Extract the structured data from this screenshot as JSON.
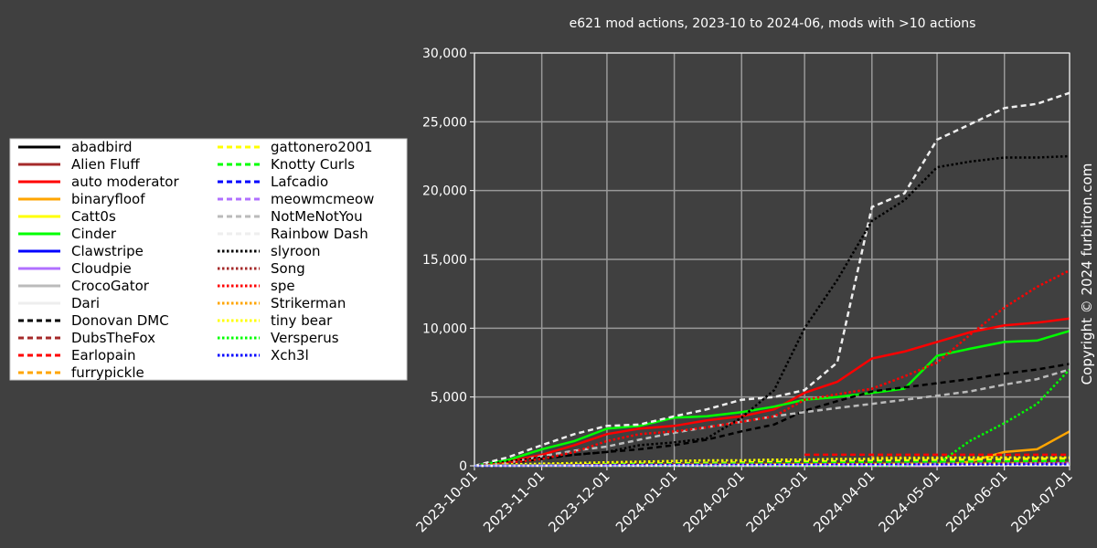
{
  "chart_data": {
    "type": "line",
    "title": "e621 mod actions, 2023-10 to 2024-06, mods with >10 actions",
    "annotation": "Copyright © 2024 furbitron.com",
    "legend": "left",
    "grid": true,
    "xlim": [
      "2023-10-01",
      "2024-07-01"
    ],
    "xticks": [
      "2023-10-01",
      "2023-11-01",
      "2023-12-01",
      "2024-01-01",
      "2024-02-01",
      "2024-03-01",
      "2024-04-01",
      "2024-05-01",
      "2024-06-01",
      "2024-07-01"
    ],
    "ylim": [
      0,
      30000
    ],
    "yticks": [
      0,
      {
        "value": 5000,
        "label": "5,000"
      },
      {
        "value": 10000,
        "label": "10,000"
      },
      {
        "value": 15000,
        "label": "15,000"
      },
      {
        "value": 20000,
        "label": "20,000"
      },
      {
        "value": 25000,
        "label": "25,000"
      },
      {
        "value": 30000,
        "label": "30,000"
      }
    ],
    "x": [
      "2023-10-01",
      "2023-10-16",
      "2023-11-01",
      "2023-11-16",
      "2023-12-01",
      "2023-12-16",
      "2024-01-01",
      "2024-01-16",
      "2024-02-01",
      "2024-02-16",
      "2024-03-01",
      "2024-03-16",
      "2024-04-01",
      "2024-04-16",
      "2024-05-01",
      "2024-05-16",
      "2024-06-01",
      "2024-06-16",
      "2024-07-01"
    ],
    "series": [
      {
        "name": "abadbird",
        "color": "#000000",
        "style": "solid",
        "values": [
          0,
          10,
          20,
          30,
          40,
          50,
          60,
          70,
          80,
          90,
          100,
          110,
          120,
          130,
          140,
          150,
          160,
          170,
          180
        ]
      },
      {
        "name": "Alien Fluff",
        "color": "#a52a2a",
        "style": "solid",
        "values": [
          0,
          20,
          40,
          60,
          80,
          100,
          120,
          130,
          140,
          150,
          160,
          170,
          180,
          190,
          200,
          210,
          220,
          230,
          240
        ]
      },
      {
        "name": "auto moderator",
        "color": "#ff0000",
        "style": "solid",
        "values": [
          0,
          300,
          800,
          1500,
          2300,
          2700,
          2900,
          3300,
          3600,
          4100,
          5300,
          6100,
          7800,
          8300,
          9000,
          9700,
          10200,
          10400,
          10700
        ]
      },
      {
        "name": "binaryfloof",
        "color": "#ffa500",
        "style": "solid",
        "values": [
          0,
          0,
          0,
          0,
          0,
          0,
          0,
          0,
          0,
          0,
          0,
          0,
          0,
          0,
          0,
          300,
          1000,
          1200,
          2500
        ]
      },
      {
        "name": "Catt0s",
        "color": "#ffff00",
        "style": "solid",
        "values": [
          0,
          10,
          20,
          30,
          40,
          50,
          60,
          70,
          80,
          90,
          100,
          110,
          120,
          130,
          140,
          150,
          160,
          170,
          180
        ]
      },
      {
        "name": "Cinder",
        "color": "#00ff00",
        "style": "solid",
        "values": [
          0,
          400,
          1200,
          1800,
          2700,
          2900,
          3500,
          3600,
          3900,
          4300,
          4800,
          5000,
          5300,
          5600,
          8000,
          8500,
          9000,
          9100,
          9800
        ]
      },
      {
        "name": "Clawstripe",
        "color": "#0000ff",
        "style": "solid",
        "values": [
          0,
          5,
          10,
          15,
          20,
          25,
          30,
          35,
          40,
          45,
          50,
          55,
          60,
          65,
          70,
          75,
          80,
          85,
          90
        ]
      },
      {
        "name": "Cloudpie",
        "color": "#b070ff",
        "style": "solid",
        "values": [
          0,
          0,
          0,
          0,
          0,
          0,
          0,
          0,
          0,
          0,
          0,
          0,
          0,
          0,
          0,
          50,
          100,
          150,
          200
        ]
      },
      {
        "name": "CrocoGator",
        "color": "#bbbbbb",
        "style": "solid",
        "values": [
          0,
          5,
          10,
          15,
          20,
          25,
          30,
          35,
          40,
          45,
          50,
          55,
          60,
          65,
          70,
          75,
          80,
          85,
          90
        ]
      },
      {
        "name": "Dari",
        "color": "#eeeeee",
        "style": "solid",
        "values": [
          0,
          5,
          10,
          15,
          20,
          25,
          30,
          35,
          40,
          45,
          50,
          55,
          60,
          65,
          70,
          75,
          80,
          85,
          90
        ]
      },
      {
        "name": "Donovan DMC",
        "color": "#000000",
        "style": "dashed",
        "values": [
          0,
          200,
          500,
          800,
          1000,
          1200,
          1500,
          1900,
          2500,
          3000,
          4000,
          4700,
          5400,
          5700,
          6000,
          6300,
          6700,
          7000,
          7400
        ]
      },
      {
        "name": "DubsTheFox",
        "color": "#a52a2a",
        "style": "dashed",
        "values": [
          0,
          10,
          20,
          30,
          40,
          50,
          60,
          70,
          80,
          90,
          100,
          110,
          120,
          130,
          140,
          150,
          160,
          170,
          180
        ]
      },
      {
        "name": "Earlopain",
        "color": "#ff0000",
        "style": "dashed",
        "values": [
          null,
          null,
          null,
          null,
          null,
          null,
          null,
          null,
          null,
          null,
          800,
          800,
          800,
          800,
          800,
          800,
          800,
          800,
          800
        ]
      },
      {
        "name": "furrypickle",
        "color": "#ffa500",
        "style": "dashed",
        "values": [
          0,
          20,
          40,
          60,
          80,
          100,
          120,
          140,
          160,
          180,
          200,
          220,
          240,
          260,
          280,
          300,
          320,
          340,
          360
        ]
      },
      {
        "name": "gattonero2001",
        "color": "#ffff00",
        "style": "dashed",
        "values": [
          0,
          30,
          60,
          90,
          120,
          150,
          180,
          210,
          240,
          270,
          300,
          330,
          360,
          390,
          420,
          450,
          480,
          510,
          540
        ]
      },
      {
        "name": "Knotty Curls",
        "color": "#00ff00",
        "style": "dashed",
        "values": [
          0,
          20,
          40,
          60,
          80,
          100,
          120,
          140,
          160,
          180,
          200,
          220,
          240,
          260,
          280,
          300,
          320,
          340,
          360
        ]
      },
      {
        "name": "Lafcadio",
        "color": "#0000ff",
        "style": "dashed",
        "values": [
          0,
          10,
          20,
          30,
          40,
          50,
          60,
          70,
          80,
          90,
          100,
          110,
          120,
          130,
          140,
          150,
          160,
          170,
          180
        ]
      },
      {
        "name": "meowmcmeow",
        "color": "#b070ff",
        "style": "dashed",
        "values": [
          0,
          10,
          20,
          30,
          40,
          50,
          60,
          70,
          80,
          90,
          100,
          110,
          120,
          130,
          140,
          150,
          160,
          170,
          180
        ]
      },
      {
        "name": "NotMeNotYou",
        "color": "#bbbbbb",
        "style": "dashed",
        "values": [
          0,
          200,
          700,
          1100,
          1400,
          1900,
          2400,
          2800,
          3200,
          3600,
          3900,
          4200,
          4500,
          4800,
          5100,
          5400,
          5900,
          6300,
          7000
        ]
      },
      {
        "name": "Rainbow Dash",
        "color": "#eeeeee",
        "style": "dashed",
        "values": [
          0,
          600,
          1500,
          2300,
          2900,
          3000,
          3600,
          4100,
          4800,
          5000,
          5500,
          7500,
          18800,
          19800,
          23700,
          24800,
          26000,
          26300,
          27100
        ]
      },
      {
        "name": "slyroon",
        "color": "#000000",
        "style": "dotted",
        "values": [
          0,
          300,
          600,
          800,
          1000,
          1500,
          1700,
          2000,
          3500,
          5500,
          10000,
          13500,
          17800,
          19300,
          21700,
          22100,
          22400,
          22400,
          22500
        ]
      },
      {
        "name": "Song",
        "color": "#a52a2a",
        "style": "dotted",
        "values": [
          0,
          10,
          20,
          30,
          40,
          50,
          60,
          70,
          80,
          90,
          100,
          110,
          120,
          130,
          140,
          150,
          160,
          170,
          180
        ]
      },
      {
        "name": "spe",
        "color": "#ff0000",
        "style": "dotted",
        "values": [
          0,
          200,
          500,
          1000,
          1800,
          2300,
          2500,
          2800,
          3200,
          3600,
          4800,
          5200,
          5600,
          6500,
          7500,
          9500,
          11500,
          13000,
          14200
        ]
      },
      {
        "name": "Strikerman",
        "color": "#ffa500",
        "style": "dotted",
        "values": [
          null,
          null,
          null,
          null,
          null,
          null,
          null,
          null,
          null,
          null,
          null,
          null,
          600,
          600,
          600,
          600,
          600,
          600,
          600
        ]
      },
      {
        "name": "tiny bear",
        "color": "#ffff00",
        "style": "dotted",
        "values": [
          0,
          100,
          150,
          200,
          250,
          300,
          350,
          400,
          400,
          450,
          450,
          500,
          500,
          550,
          550,
          600,
          600,
          600,
          600
        ]
      },
      {
        "name": "Versperus",
        "color": "#00ff00",
        "style": "dotted",
        "values": [
          0,
          0,
          0,
          0,
          0,
          0,
          0,
          0,
          0,
          0,
          0,
          0,
          0,
          0,
          100,
          1800,
          3100,
          4500,
          7000
        ]
      },
      {
        "name": "Xch3l",
        "color": "#0000ff",
        "style": "dotted",
        "values": [
          0,
          5,
          10,
          15,
          20,
          25,
          30,
          35,
          40,
          45,
          50,
          55,
          60,
          65,
          70,
          75,
          80,
          85,
          90
        ]
      }
    ]
  }
}
